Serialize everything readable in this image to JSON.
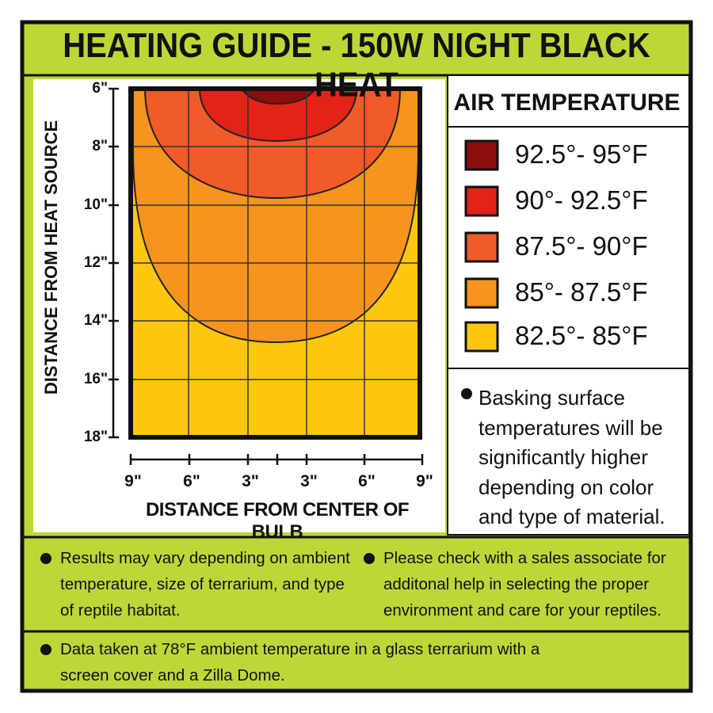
{
  "header": {
    "title": "HEATING GUIDE - 150W NIGHT BLACK HEAT"
  },
  "plot": {
    "y_axis_label": "DISTANCE FROM HEAT SOURCE",
    "x_axis_label": "DISTANCE FROM CENTER OF BULB",
    "y_ticks": [
      "6\"",
      "8\"",
      "10\"",
      "12\"",
      "14\"",
      "16\"",
      "18\""
    ],
    "x_ticks": [
      "9\"",
      "6\"",
      "3\"",
      "3\"",
      "6\"",
      "9\""
    ]
  },
  "legend": {
    "title": "AIR TEMPERATURE",
    "items": [
      "92.5°- 95°F",
      "90°- 92.5°F",
      "87.5°- 90°F",
      "85°- 87.5°F",
      "82.5°- 85°F"
    ]
  },
  "side_note": "Basking surface temperatures will be significantly higher depending on color and type of material.",
  "notes": [
    "Results may vary depending on ambient temperature, size of terrarium, and type of reptile habitat.",
    "Please check with a sales associate for additonal help in selecting the proper environment and care for your reptiles.",
    "Data taken at 78°F ambient temperature in a glass terrarium with a screen cover and a Zilla Dome."
  ]
}
